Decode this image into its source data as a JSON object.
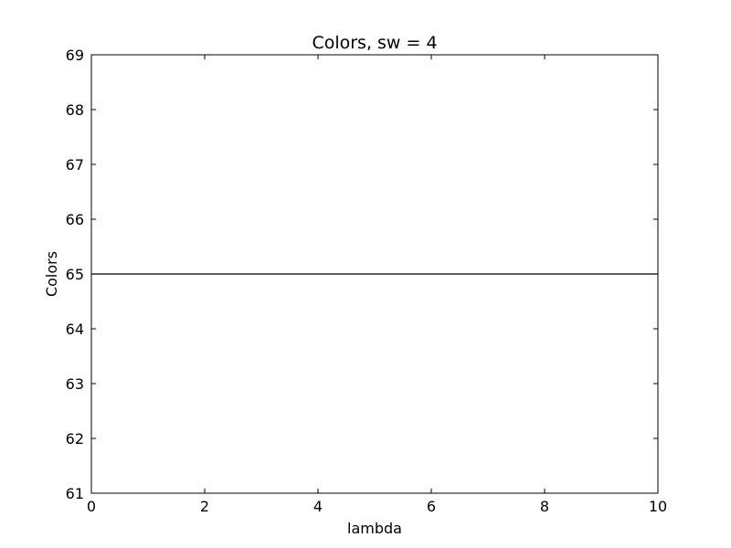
{
  "chart_data": {
    "type": "line",
    "title": "Colors, sw = 4",
    "xlabel": "lambda",
    "ylabel": "Colors",
    "xlim": [
      0,
      10
    ],
    "ylim": [
      61,
      69
    ],
    "xticks": [
      "0",
      "2",
      "4",
      "6",
      "8",
      "10"
    ],
    "yticks": [
      "61",
      "62",
      "63",
      "64",
      "65",
      "66",
      "67",
      "68",
      "69"
    ],
    "grid": false,
    "series": [
      {
        "x": [
          0,
          9.8
        ],
        "y": [
          65,
          65
        ],
        "color": "#ff0000",
        "style": "dashed"
      },
      {
        "x": [
          0,
          9.8
        ],
        "y": [
          65,
          65
        ],
        "color": "#0000ff",
        "style": "dashed"
      },
      {
        "x": [
          0,
          10
        ],
        "y": [
          65,
          65
        ],
        "color": "#000000",
        "style": "solid"
      }
    ]
  }
}
